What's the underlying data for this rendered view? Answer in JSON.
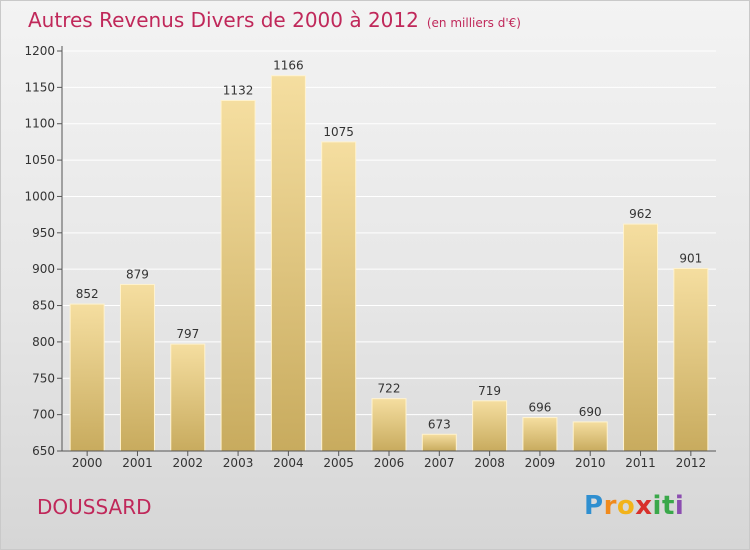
{
  "header": {
    "title": "Autres Revenus Divers de 2000 à 2012",
    "unit": "(en milliers d'€)"
  },
  "footer": {
    "commune": "DOUSSARD",
    "logo": {
      "letters": [
        "P",
        "r",
        "o",
        "x",
        "i",
        "t",
        "i"
      ],
      "colors": [
        "#2f8fd0",
        "#f08a1c",
        "#f2b31b",
        "#d8302b",
        "#3aa84a",
        "#3aa84a",
        "#8c4db0"
      ]
    }
  },
  "colors": {
    "bar_light": "#f5dea0",
    "bar_dark": "#c8ab5e",
    "axis": "#555555",
    "grid": "#ffffff",
    "accent": "#c0285a"
  },
  "chart_data": {
    "type": "bar",
    "title": "Autres Revenus Divers de 2000 à 2012",
    "subtitle": "(en milliers d'€)",
    "categories": [
      "2000",
      "2001",
      "2002",
      "2003",
      "2004",
      "2005",
      "2006",
      "2007",
      "2008",
      "2009",
      "2010",
      "2011",
      "2012"
    ],
    "values": [
      852,
      879,
      797,
      1132,
      1166,
      1075,
      722,
      673,
      719,
      696,
      690,
      962,
      901
    ],
    "ylim": [
      650,
      1200
    ],
    "yticks": [
      650,
      700,
      750,
      800,
      850,
      900,
      950,
      1000,
      1050,
      1100,
      1150,
      1200
    ],
    "grid": true,
    "data_labels": true
  }
}
